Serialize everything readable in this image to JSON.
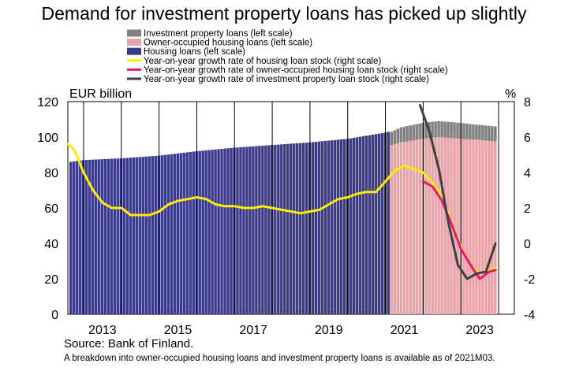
{
  "chart_data": {
    "type": "bar",
    "title": "Demand for investment property loans has picked up slightly",
    "y_left_unit": "EUR billion",
    "y_right_unit": "%",
    "ylim_left": [
      0,
      120
    ],
    "ylim_right": [
      -4,
      8
    ],
    "y_left_ticks": [
      "0",
      "20",
      "40",
      "60",
      "80",
      "100",
      "120"
    ],
    "y_right_ticks": [
      "-4",
      "-2",
      "0",
      "2",
      "4",
      "6",
      "8"
    ],
    "x_tick_labels": [
      "2013",
      "2015",
      "2017",
      "2019",
      "2021",
      "2023"
    ],
    "x_range": [
      "2012-08",
      "2024-06"
    ],
    "grid": "vertical lines at year starts",
    "legend_position": "top-left",
    "legend": [
      {
        "label": "Investment property loans (left scale)",
        "color": "#808080",
        "kind": "bar"
      },
      {
        "label": "Owner-occupied housing loans (left scale)",
        "color": "#e8a3a8",
        "kind": "bar"
      },
      {
        "label": "Housing loans (left scale)",
        "color": "#3b3b8a",
        "kind": "bar"
      },
      {
        "label": "Year-on-year growth rate of housing loan stock (right scale)",
        "color": "#ffee00",
        "kind": "line"
      },
      {
        "label": "Year-on-year growth rate of owner-occupied housing loan stock (right scale)",
        "color": "#e8197a",
        "kind": "line"
      },
      {
        "label": "Year-on-year growth rate of investment property loan stock (right scale)",
        "color": "#404040",
        "kind": "line"
      }
    ],
    "housing_loans_eur_bn": {
      "x": [
        "2012-09",
        "2013-01",
        "2014-01",
        "2015-01",
        "2016-01",
        "2017-01",
        "2018-01",
        "2019-01",
        "2020-01",
        "2021-01",
        "2021-02"
      ],
      "y": [
        86,
        87,
        88,
        89.5,
        92,
        94,
        95.5,
        97,
        99,
        102.5,
        103
      ]
    },
    "owner_occupied_housing_loans_eur_bn": {
      "x": [
        "2021-03",
        "2021-06",
        "2022-01",
        "2022-06",
        "2023-01",
        "2023-06",
        "2023-12"
      ],
      "y": [
        95.5,
        97,
        99,
        100,
        99,
        98.5,
        97.5
      ]
    },
    "investment_property_loans_eur_bn": {
      "x": [
        "2021-03",
        "2021-06",
        "2022-01",
        "2022-06",
        "2023-01",
        "2023-06",
        "2023-12"
      ],
      "y": [
        7.5,
        8.5,
        9,
        9,
        9,
        8.5,
        8.5
      ]
    },
    "growth_housing_loans_pct": {
      "x": [
        "2012-08",
        "2012-10",
        "2013-01",
        "2013-04",
        "2013-07",
        "2013-10",
        "2014-01",
        "2014-04",
        "2014-07",
        "2014-10",
        "2015-01",
        "2015-04",
        "2015-07",
        "2015-10",
        "2016-01",
        "2016-04",
        "2016-07",
        "2016-10",
        "2017-01",
        "2017-04",
        "2017-07",
        "2017-10",
        "2018-01",
        "2018-04",
        "2018-07",
        "2018-10",
        "2019-01",
        "2019-04",
        "2019-07",
        "2019-10",
        "2020-01",
        "2020-04",
        "2020-07",
        "2020-10",
        "2021-01",
        "2021-04",
        "2021-07",
        "2021-10",
        "2022-01",
        "2022-04",
        "2022-07",
        "2022-10",
        "2023-01",
        "2023-04",
        "2023-07",
        "2023-10",
        "2023-12"
      ],
      "y": [
        5.6,
        5.3,
        4.0,
        3.0,
        2.3,
        2.0,
        2.0,
        1.6,
        1.6,
        1.6,
        1.8,
        2.2,
        2.4,
        2.5,
        2.6,
        2.5,
        2.2,
        2.1,
        2.1,
        2.0,
        2.0,
        2.1,
        2.0,
        1.9,
        1.8,
        1.7,
        1.8,
        1.9,
        2.2,
        2.5,
        2.6,
        2.8,
        2.9,
        2.9,
        3.5,
        4.1,
        4.4,
        4.2,
        4.0,
        3.4,
        2.6,
        1.2,
        -0.2,
        -1.2,
        -1.7,
        -1.5,
        -1.4
      ]
    },
    "growth_owner_occupied_pct": {
      "x": [
        "2022-01",
        "2022-04",
        "2022-07",
        "2022-10",
        "2023-01",
        "2023-04",
        "2023-07",
        "2023-10",
        "2023-12"
      ],
      "y": [
        3.5,
        3.2,
        2.4,
        1.1,
        -0.3,
        -1.2,
        -2.0,
        -1.6,
        -1.5
      ]
    },
    "growth_investment_property_pct": {
      "x": [
        "2021-12",
        "2022-03",
        "2022-06",
        "2022-09",
        "2022-12",
        "2023-03",
        "2023-06",
        "2023-09",
        "2023-12"
      ],
      "y": [
        7.8,
        6.3,
        4.2,
        1.2,
        -1.2,
        -2.0,
        -1.7,
        -1.6,
        0.0
      ]
    }
  },
  "source": "Source: Bank of Finland.",
  "footnote": "A breakdown into owner-occupied housing loans and investment property loans is available as of 2021M03."
}
